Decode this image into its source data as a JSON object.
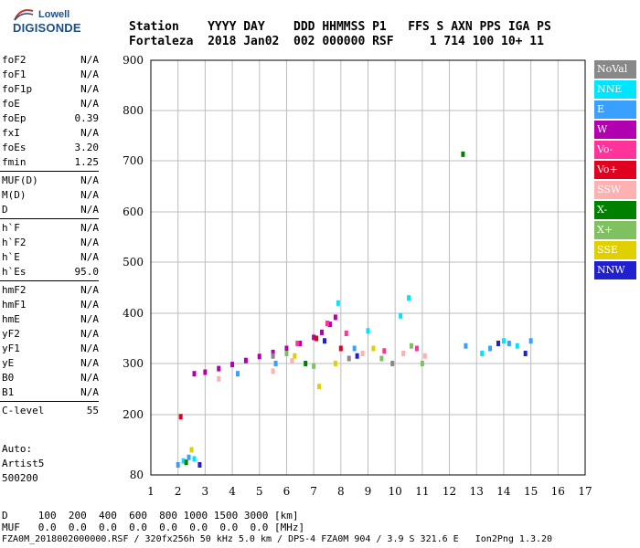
{
  "logo": {
    "top": "Lowell",
    "bottom": "DIGISONDE"
  },
  "header": {
    "line1": "Station    YYYY DAY    DDD HHMMSS P1   FFS S AXN PPS IGA PS",
    "line2": "Fortaleza  2018 Jan02  002 000000 RSF     1 714 100 10+ 11"
  },
  "params": [
    [
      {
        "label": "foF2",
        "value": "N/A"
      },
      {
        "label": "foF1",
        "value": "N/A"
      },
      {
        "label": "foF1p",
        "value": "N/A"
      },
      {
        "label": "foE",
        "value": "N/A"
      },
      {
        "label": "foEp",
        "value": "0.39"
      },
      {
        "label": "fxI",
        "value": "N/A"
      },
      {
        "label": "foEs",
        "value": "3.20"
      },
      {
        "label": "fmin",
        "value": "1.25"
      }
    ],
    [
      {
        "label": "MUF(D)",
        "value": "N/A"
      },
      {
        "label": "M(D)",
        "value": "N/A"
      },
      {
        "label": "D",
        "value": "N/A"
      }
    ],
    [
      {
        "label": "h`F",
        "value": "N/A"
      },
      {
        "label": "h`F2",
        "value": "N/A"
      },
      {
        "label": "h`E",
        "value": "N/A"
      },
      {
        "label": "h`Es",
        "value": "95.0"
      }
    ],
    [
      {
        "label": "hmF2",
        "value": "N/A"
      },
      {
        "label": "hmF1",
        "value": "N/A"
      },
      {
        "label": "hmE",
        "value": "N/A"
      },
      {
        "label": "yF2",
        "value": "N/A"
      },
      {
        "label": "yF1",
        "value": "N/A"
      },
      {
        "label": "yE",
        "value": "N/A"
      },
      {
        "label": "B0",
        "value": "N/A"
      },
      {
        "label": "B1",
        "value": "N/A"
      }
    ],
    [
      {
        "label": "C-level",
        "value": "55"
      }
    ]
  ],
  "auto": {
    "line1": "Auto:",
    "line2": "Artist5",
    "line3": "500200"
  },
  "legend": [
    {
      "label": "NoVal",
      "color": "#888888"
    },
    {
      "label": "NNE",
      "color": "#00e5ff"
    },
    {
      "label": "E",
      "color": "#3aa0ff"
    },
    {
      "label": "W",
      "color": "#b000b0"
    },
    {
      "label": "Vo-",
      "color": "#ff3399"
    },
    {
      "label": "Vo+",
      "color": "#e00020"
    },
    {
      "label": "SSW",
      "color": "#ffb0b0"
    },
    {
      "label": "X-",
      "color": "#008000"
    },
    {
      "label": "X+",
      "color": "#7fc060"
    },
    {
      "label": "SSE",
      "color": "#e0d000"
    },
    {
      "label": "NNW",
      "color": "#2020d0"
    }
  ],
  "bottom": {
    "line1": "D     100  200  400  600  800 1000 1500 3000 [km]",
    "line2": "MUF   0.0  0.0  0.0  0.0  0.0  0.0  0.0  0.0 [MHz]"
  },
  "footer": "FZA0M_2018002000000.RSF / 320fx256h 50 kHz 5.0 km / DPS-4 FZA0M 904 / 3.9 S 321.6 E   Ion2Png 1.3.20",
  "chart_data": {
    "type": "scatter",
    "title": "",
    "xlabel": "",
    "ylabel": "",
    "xlim": [
      1,
      17
    ],
    "ylim": [
      80,
      900
    ],
    "x_ticks": [
      1,
      2,
      3,
      4,
      5,
      6,
      7,
      8,
      9,
      10,
      11,
      12,
      13,
      14,
      15,
      16,
      17
    ],
    "y_ticks": [
      80,
      200,
      300,
      400,
      500,
      600,
      700,
      800,
      900
    ],
    "grid": true,
    "legend_position": "right",
    "series": [
      {
        "name": "W",
        "color": "#b000b0",
        "points": [
          [
            2.6,
            280
          ],
          [
            3.0,
            283
          ],
          [
            3.5,
            290
          ],
          [
            4.0,
            298
          ],
          [
            4.5,
            306
          ],
          [
            5.0,
            314
          ],
          [
            5.5,
            322
          ],
          [
            6.0,
            330
          ],
          [
            6.5,
            340
          ],
          [
            7.0,
            352
          ],
          [
            7.3,
            362
          ],
          [
            7.6,
            378
          ],
          [
            7.8,
            392
          ]
        ]
      },
      {
        "name": "NNE",
        "color": "#00e5ff",
        "points": [
          [
            2.2,
            108
          ],
          [
            2.6,
            112
          ],
          [
            7.9,
            420
          ],
          [
            9.0,
            365
          ],
          [
            10.2,
            395
          ],
          [
            10.5,
            430
          ],
          [
            13.2,
            320
          ],
          [
            14.0,
            345
          ],
          [
            14.5,
            335
          ]
        ]
      },
      {
        "name": "E",
        "color": "#3aa0ff",
        "points": [
          [
            2.0,
            100
          ],
          [
            2.4,
            115
          ],
          [
            4.2,
            280
          ],
          [
            5.6,
            300
          ],
          [
            8.5,
            330
          ],
          [
            12.6,
            335
          ],
          [
            13.5,
            330
          ],
          [
            14.2,
            340
          ],
          [
            15.0,
            345
          ]
        ]
      },
      {
        "name": "Vo-",
        "color": "#ff3399",
        "points": [
          [
            6.4,
            340
          ],
          [
            7.5,
            380
          ],
          [
            8.2,
            360
          ],
          [
            9.6,
            325
          ],
          [
            10.8,
            330
          ]
        ]
      },
      {
        "name": "Vo+",
        "color": "#e00020",
        "points": [
          [
            2.1,
            196
          ],
          [
            7.1,
            350
          ],
          [
            8.0,
            330
          ]
        ]
      },
      {
        "name": "SSW",
        "color": "#ffb0b0",
        "points": [
          [
            3.5,
            270
          ],
          [
            5.5,
            285
          ],
          [
            6.2,
            305
          ],
          [
            8.8,
            320
          ],
          [
            10.3,
            320
          ],
          [
            11.1,
            315
          ]
        ]
      },
      {
        "name": "X-",
        "color": "#008000",
        "points": [
          [
            2.3,
            105
          ],
          [
            6.7,
            300
          ],
          [
            12.5,
            713
          ]
        ]
      },
      {
        "name": "X+",
        "color": "#7fc060",
        "points": [
          [
            6.0,
            320
          ],
          [
            7.0,
            295
          ],
          [
            9.5,
            310
          ],
          [
            10.6,
            335
          ],
          [
            11.0,
            300
          ]
        ]
      },
      {
        "name": "SSE",
        "color": "#e0d000",
        "points": [
          [
            2.5,
            130
          ],
          [
            6.3,
            315
          ],
          [
            7.2,
            255
          ],
          [
            7.8,
            300
          ],
          [
            9.2,
            330
          ]
        ]
      },
      {
        "name": "NNW",
        "color": "#2020d0",
        "points": [
          [
            2.8,
            100
          ],
          [
            7.4,
            345
          ],
          [
            8.6,
            315
          ],
          [
            13.8,
            340
          ],
          [
            14.8,
            320
          ]
        ]
      },
      {
        "name": "NoVal",
        "color": "#888888",
        "points": [
          [
            5.5,
            315
          ],
          [
            8.3,
            310
          ],
          [
            9.9,
            300
          ]
        ]
      }
    ]
  }
}
